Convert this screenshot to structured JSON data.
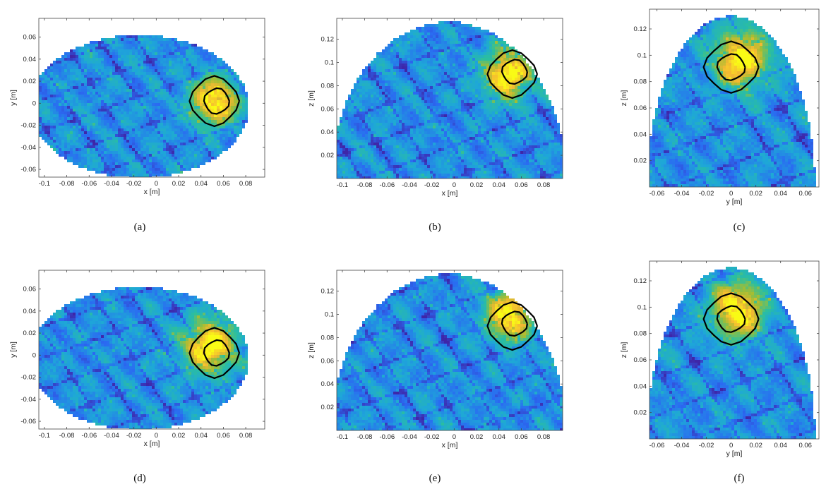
{
  "figure": {
    "colormap": [
      "#3e26a8",
      "#2a6af2",
      "#1ea7d8",
      "#2bbf9e",
      "#a3bd33",
      "#f5b932",
      "#f9fb15"
    ],
    "contour_color": "#000000"
  },
  "chart_data": [
    {
      "id": "a",
      "caption": "(a)",
      "type": "heatmap",
      "xlabel": "x [m]",
      "ylabel": "y [m]",
      "xlim": [
        -0.105,
        0.097
      ],
      "ylim": [
        -0.067,
        0.077
      ],
      "xticks": [
        "-0.1",
        "-0.08",
        "-0.06",
        "-0.04",
        "-0.02",
        "0",
        "0.02",
        "0.04",
        "0.06",
        "0.08"
      ],
      "xtick_values": [
        -0.1,
        -0.08,
        -0.06,
        -0.04,
        -0.02,
        0,
        0.02,
        0.04,
        0.06,
        0.08
      ],
      "yticks": [
        "-0.06",
        "-0.04",
        "-0.02",
        "0",
        "0.02",
        "0.04",
        "0.06"
      ],
      "ytick_values": [
        -0.06,
        -0.04,
        -0.02,
        0,
        0.02,
        0.04,
        0.06
      ],
      "domain": {
        "shape": "ellipse",
        "center": [
          -0.015,
          -0.003
        ],
        "radii": [
          0.098,
          0.065
        ]
      },
      "hotspot": {
        "center": [
          0.052,
          0.002
        ],
        "radius": 0.02
      },
      "contours": [
        {
          "center": [
            0.052,
            0.002
          ],
          "radius": 0.021
        },
        {
          "center": [
            0.054,
            0.002
          ],
          "radius": 0.011
        }
      ]
    },
    {
      "id": "b",
      "caption": "(b)",
      "type": "heatmap",
      "xlabel": "x [m]",
      "ylabel": "z [m]",
      "xlim": [
        -0.105,
        0.097
      ],
      "ylim": [
        0.0,
        0.138
      ],
      "xticks": [
        "-0.1",
        "-0.08",
        "-0.06",
        "-0.04",
        "-0.02",
        "0",
        "0.02",
        "0.04",
        "0.06",
        "0.08"
      ],
      "xtick_values": [
        -0.1,
        -0.08,
        -0.06,
        -0.04,
        -0.02,
        0,
        0.02,
        0.04,
        0.06,
        0.08
      ],
      "yticks": [
        "0.02",
        "0.04",
        "0.06",
        "0.08",
        "0.1",
        "0.12"
      ],
      "ytick_values": [
        0.02,
        0.04,
        0.06,
        0.08,
        0.1,
        0.12
      ],
      "domain": {
        "shape": "dome",
        "center": [
          -0.005,
          0.0
        ],
        "radii": [
          0.105,
          0.135
        ]
      },
      "hotspot": {
        "center": [
          0.048,
          0.09
        ],
        "radius": 0.02
      },
      "contours": [
        {
          "center": [
            0.052,
            0.09
          ],
          "radius": 0.021
        },
        {
          "center": [
            0.054,
            0.092
          ],
          "radius": 0.011
        }
      ]
    },
    {
      "id": "c",
      "caption": "(c)",
      "type": "heatmap",
      "xlabel": "y [m]",
      "ylabel": "z [m]",
      "xlim": [
        -0.066,
        0.071
      ],
      "ylim": [
        0.0,
        0.135
      ],
      "xticks": [
        "-0.06",
        "-0.04",
        "-0.02",
        "0",
        "0.02",
        "0.04",
        "0.06"
      ],
      "xtick_values": [
        -0.06,
        -0.04,
        -0.02,
        0,
        0.02,
        0.04,
        0.06
      ],
      "yticks": [
        "0.02",
        "0.04",
        "0.06",
        "0.08",
        "0.1",
        "0.12"
      ],
      "ytick_values": [
        0.02,
        0.04,
        0.06,
        0.08,
        0.1,
        0.12
      ],
      "domain": {
        "shape": "dome",
        "center": [
          0.0,
          0.0
        ],
        "radii": [
          0.068,
          0.13
        ]
      },
      "hotspot": {
        "center": [
          0.008,
          0.097
        ],
        "radius": 0.02
      },
      "contours": [
        {
          "center": [
            0.0,
            0.091
          ],
          "radius": 0.021
        },
        {
          "center": [
            0.0,
            0.091
          ],
          "radius": 0.011
        }
      ]
    },
    {
      "id": "d",
      "caption": "(d)",
      "type": "heatmap",
      "xlabel": "x [m]",
      "ylabel": "y [m]",
      "xlim": [
        -0.105,
        0.097
      ],
      "ylim": [
        -0.067,
        0.077
      ],
      "xticks": [
        "-0.1",
        "-0.08",
        "-0.06",
        "-0.04",
        "-0.02",
        "0",
        "0.02",
        "0.04",
        "0.06",
        "0.08"
      ],
      "xtick_values": [
        -0.1,
        -0.08,
        -0.06,
        -0.04,
        -0.02,
        0,
        0.02,
        0.04,
        0.06,
        0.08
      ],
      "yticks": [
        "-0.06",
        "-0.04",
        "-0.02",
        "0",
        "0.02",
        "0.04",
        "0.06"
      ],
      "ytick_values": [
        -0.06,
        -0.04,
        -0.02,
        0,
        0.02,
        0.04,
        0.06
      ],
      "domain": {
        "shape": "ellipse",
        "center": [
          -0.015,
          -0.003
        ],
        "radii": [
          0.098,
          0.065
        ]
      },
      "hotspot": {
        "center": [
          0.048,
          0.008
        ],
        "radius": 0.022
      },
      "contours": [
        {
          "center": [
            0.052,
            0.002
          ],
          "radius": 0.021
        },
        {
          "center": [
            0.054,
            0.002
          ],
          "radius": 0.011
        }
      ]
    },
    {
      "id": "e",
      "caption": "(e)",
      "type": "heatmap",
      "xlabel": "x [m]",
      "ylabel": "z [m]",
      "xlim": [
        -0.105,
        0.097
      ],
      "ylim": [
        0.0,
        0.138
      ],
      "xticks": [
        "-0.1",
        "-0.08",
        "-0.06",
        "-0.04",
        "-0.02",
        "0",
        "0.02",
        "0.04",
        "0.06",
        "0.08"
      ],
      "xtick_values": [
        -0.1,
        -0.08,
        -0.06,
        -0.04,
        -0.02,
        0,
        0.02,
        0.04,
        0.06,
        0.08
      ],
      "yticks": [
        "0.02",
        "0.04",
        "0.06",
        "0.08",
        "0.1",
        "0.12"
      ],
      "ytick_values": [
        0.02,
        0.04,
        0.06,
        0.08,
        0.1,
        0.12
      ],
      "domain": {
        "shape": "dome",
        "center": [
          -0.005,
          0.0
        ],
        "radii": [
          0.105,
          0.135
        ]
      },
      "hotspot": {
        "center": [
          0.05,
          0.1
        ],
        "radius": 0.02
      },
      "contours": [
        {
          "center": [
            0.052,
            0.09
          ],
          "radius": 0.021
        },
        {
          "center": [
            0.054,
            0.092
          ],
          "radius": 0.011
        }
      ]
    },
    {
      "id": "f",
      "caption": "(f)",
      "type": "heatmap",
      "xlabel": "y [m]",
      "ylabel": "z [m]",
      "xlim": [
        -0.066,
        0.071
      ],
      "ylim": [
        0.0,
        0.135
      ],
      "xticks": [
        "-0.06",
        "-0.04",
        "-0.02",
        "0",
        "0.02",
        "0.04",
        "0.06"
      ],
      "xtick_values": [
        -0.06,
        -0.04,
        -0.02,
        0,
        0.02,
        0.04,
        0.06
      ],
      "yticks": [
        "0.02",
        "0.04",
        "0.06",
        "0.08",
        "0.1",
        "0.12"
      ],
      "ytick_values": [
        0.02,
        0.04,
        0.06,
        0.08,
        0.1,
        0.12
      ],
      "domain": {
        "shape": "dome",
        "center": [
          0.0,
          0.0
        ],
        "radii": [
          0.068,
          0.13
        ]
      },
      "hotspot": {
        "center": [
          0.005,
          0.098
        ],
        "radius": 0.02
      },
      "contours": [
        {
          "center": [
            0.0,
            0.091
          ],
          "radius": 0.021
        },
        {
          "center": [
            0.0,
            0.091
          ],
          "radius": 0.011
        }
      ]
    }
  ]
}
